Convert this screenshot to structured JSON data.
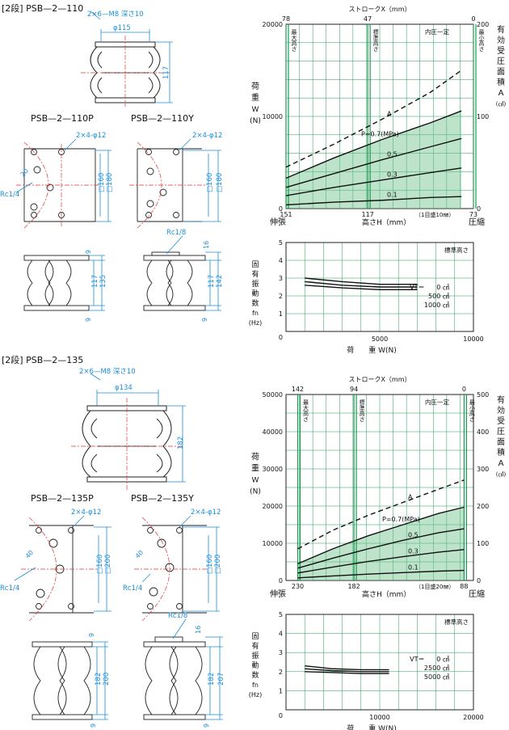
{
  "sections": [
    {
      "title": "[2段] PSB—2—110",
      "hole_spec": "2×6—M8 深さ10",
      "phi": "φ115",
      "height": "117",
      "variant_p": "PSB—2—110P",
      "variant_y": "PSB—2—110Y",
      "p_holes": "2×4-φ12",
      "y_holes": "2×4-φ12",
      "p_angle": "20",
      "p_rc": "Rc1/4",
      "y_rc": "Rc1/8",
      "sq160": "□160",
      "sq180": "□180",
      "p_side": {
        "top": "9",
        "mid": "117",
        "total": "135",
        "bot": "9"
      },
      "y_side": {
        "top": "16",
        "mid": "117",
        "total": "142",
        "bot": "9"
      }
    },
    {
      "title": "[2段] PSB—2—135",
      "hole_spec": "2×6—M8 深さ10",
      "phi": "φ134",
      "height": "182",
      "variant_p": "PSB—2—135P",
      "variant_y": "PSB—2—135Y",
      "p_holes": "2×4-φ12",
      "y_holes": "2×4-φ12",
      "p_angle": "40",
      "y_angle": "40",
      "p_rc": "Rc1/4",
      "y_rc1": "Rc1/4",
      "y_rc": "Rc1/8",
      "sq160": "□160",
      "sq200": "□200",
      "p_side": {
        "top": "9",
        "mid": "182",
        "total": "200",
        "bot": "9"
      },
      "y_side": {
        "top": "16",
        "mid": "182",
        "total": "207",
        "bot": "9"
      }
    }
  ],
  "chart_common": {
    "stroke_label": "ストロークX（mm）",
    "load_label_chars": [
      "荷",
      "重",
      "W",
      "(N)"
    ],
    "area_label_chars": [
      "有",
      "効",
      "受",
      "圧",
      "面",
      "積",
      "A",
      "(㎠)"
    ],
    "max_height": "最大高さ",
    "std_height": "標準高さ",
    "min_height": "最小高さ",
    "const_pressure": "内圧一定",
    "expand": "伸張",
    "compress": "圧縮",
    "height_axis": "高さH（mm）",
    "curve_a": "A",
    "p_labels": [
      "P=0.7(MPa)",
      "0.5",
      "0.3",
      "0.1"
    ],
    "freq_chars": [
      "固",
      "有",
      "振",
      "動",
      "数",
      "fn",
      "(Hz)"
    ],
    "freq_std": "標準高さ",
    "freq_x_label": "荷　　重 W(N)",
    "vt_label": "VT＝"
  },
  "chart_data": [
    {
      "type": "line",
      "title": "",
      "x_label": "高さH（mm）",
      "x_ticks": [
        "151",
        "117",
        "73"
      ],
      "stroke_ticks": [
        "78",
        "47",
        "0"
      ],
      "scale_note": "（1目盛10㎜）",
      "y_left": {
        "ticks": [
          "0",
          "10000",
          "20000"
        ],
        "range": [
          0,
          20000
        ]
      },
      "y_right": {
        "ticks": [
          "0",
          "100",
          "200"
        ],
        "range": [
          0,
          200
        ]
      },
      "x_range": [
        151,
        73
      ],
      "series": [
        {
          "name": "A",
          "x": [
            151,
            131,
            111,
            91,
            78
          ],
          "values": [
            4500,
            7000,
            9700,
            12600,
            15000
          ]
        },
        {
          "name": "P=0.7(MPa)",
          "x": [
            151,
            131,
            111,
            91,
            78
          ],
          "values": [
            3300,
            5500,
            7500,
            9300,
            10600
          ]
        },
        {
          "name": "0.5",
          "x": [
            151,
            131,
            111,
            91,
            78
          ],
          "values": [
            2300,
            3800,
            5300,
            6700,
            7600
          ]
        },
        {
          "name": "0.3",
          "x": [
            151,
            131,
            111,
            91,
            78
          ],
          "values": [
            1400,
            2300,
            3100,
            3900,
            4400
          ]
        },
        {
          "name": "0.1",
          "x": [
            151,
            131,
            111,
            91,
            78
          ],
          "values": [
            400,
            700,
            900,
            1200,
            1300
          ]
        }
      ]
    },
    {
      "type": "line",
      "title": "",
      "x_ticks": [
        "0",
        "5000",
        "10000"
      ],
      "x_range": [
        0,
        10000
      ],
      "y_ticks": [
        "1",
        "2",
        "3",
        "4",
        "5"
      ],
      "y_range": [
        0,
        5
      ],
      "vt_values": [
        "0 ㎠",
        "500 ㎠",
        "1000 ㎠"
      ],
      "series": [
        {
          "name": "0 ㎠",
          "x": [
            1000,
            3000,
            5000,
            7000
          ],
          "values": [
            3.0,
            2.8,
            2.65,
            2.65
          ]
        },
        {
          "name": "500 ㎠",
          "x": [
            1000,
            3000,
            5000,
            7000
          ],
          "values": [
            2.8,
            2.6,
            2.5,
            2.5
          ]
        },
        {
          "name": "1000 ㎠",
          "x": [
            1000,
            3000,
            5000,
            7000
          ],
          "values": [
            2.6,
            2.45,
            2.35,
            2.35
          ]
        }
      ]
    },
    {
      "type": "line",
      "title": "",
      "x_label": "高さH（mm）",
      "x_ticks": [
        "230",
        "182",
        "88"
      ],
      "stroke_ticks": [
        "142",
        "94",
        "0"
      ],
      "scale_note": "（1目盛20㎜）",
      "y_left": {
        "ticks": [
          "0",
          "10000",
          "20000",
          "30000",
          "40000",
          "50000"
        ],
        "range": [
          0,
          50000
        ]
      },
      "y_right": {
        "ticks": [
          "0",
          "100",
          "200",
          "300",
          "400",
          "500"
        ],
        "range": [
          0,
          500
        ]
      },
      "x_range": [
        240,
        80
      ],
      "series": [
        {
          "name": "A",
          "x": [
            230,
            200,
            170,
            140,
            110,
            88
          ],
          "values": [
            8500,
            13500,
            17500,
            21000,
            24500,
            27000
          ]
        },
        {
          "name": "P=0.7(MPa)",
          "x": [
            230,
            200,
            170,
            140,
            110,
            88
          ],
          "values": [
            4500,
            8500,
            12000,
            15000,
            18000,
            19700
          ]
        },
        {
          "name": "0.5",
          "x": [
            230,
            200,
            170,
            140,
            110,
            88
          ],
          "values": [
            3300,
            6000,
            8500,
            10800,
            12800,
            13900
          ]
        },
        {
          "name": "0.3",
          "x": [
            230,
            200,
            170,
            140,
            110,
            88
          ],
          "values": [
            2000,
            3600,
            5100,
            6400,
            7600,
            8300
          ]
        },
        {
          "name": "0.1",
          "x": [
            230,
            200,
            170,
            140,
            110,
            88
          ],
          "values": [
            700,
            1200,
            1700,
            2100,
            2500,
            2700
          ]
        }
      ]
    },
    {
      "type": "line",
      "title": "",
      "x_ticks": [
        "0",
        "10000",
        "20000"
      ],
      "x_range": [
        0,
        20000
      ],
      "y_ticks": [
        "1",
        "2",
        "3",
        "4",
        "5"
      ],
      "y_range": [
        0,
        5
      ],
      "vt_values": [
        "0 ㎠",
        "2500 ㎠",
        "5000 ㎠"
      ],
      "series": [
        {
          "name": "0 ㎠",
          "x": [
            2000,
            5000,
            8000,
            11000
          ],
          "values": [
            2.3,
            2.15,
            2.1,
            2.1
          ]
        },
        {
          "name": "2500 ㎠",
          "x": [
            2000,
            5000,
            8000,
            11000
          ],
          "values": [
            2.15,
            2.05,
            2.0,
            2.0
          ]
        },
        {
          "name": "5000 ㎠",
          "x": [
            2000,
            5000,
            8000,
            11000
          ],
          "values": [
            2.0,
            1.95,
            1.9,
            1.9
          ]
        }
      ]
    }
  ]
}
